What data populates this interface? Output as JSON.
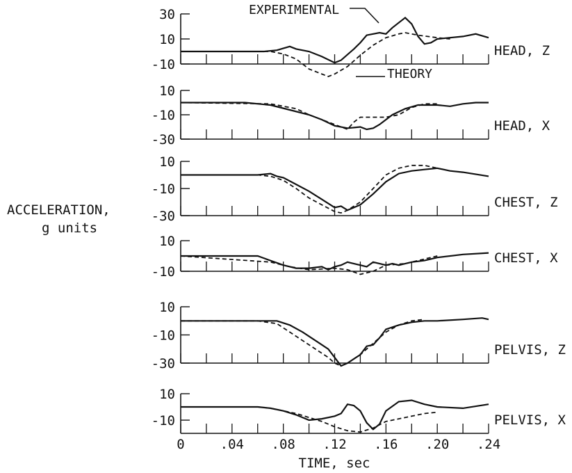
{
  "chart_data": {
    "type": "line",
    "ylabel": [
      "ACCELERATION,",
      "g units"
    ],
    "xlabel": "TIME, sec",
    "xlim": [
      0,
      0.24
    ],
    "xtick_labels": [
      "0",
      ".04",
      ".08",
      ".12",
      ".16",
      ".20",
      ".24"
    ],
    "xticks": [
      0,
      0.04,
      0.08,
      0.12,
      0.16,
      0.2,
      0.24
    ],
    "annotations": {
      "experimental": "EXPERIMENTAL",
      "theory": "THEORY"
    },
    "series_styles": {
      "experimental": "solid",
      "theory": "dashed"
    },
    "panels": [
      {
        "label": "HEAD, Z",
        "ylim": [
          -10,
          30
        ],
        "ytick_labels": [
          "30",
          "10",
          "-10"
        ],
        "yticks": [
          30,
          10,
          -10
        ],
        "experimental": [
          [
            0,
            0
          ],
          [
            0.04,
            0
          ],
          [
            0.065,
            0
          ],
          [
            0.075,
            1
          ],
          [
            0.085,
            4
          ],
          [
            0.09,
            2
          ],
          [
            0.1,
            0
          ],
          [
            0.11,
            -4
          ],
          [
            0.12,
            -9
          ],
          [
            0.125,
            -7
          ],
          [
            0.135,
            2
          ],
          [
            0.14,
            7
          ],
          [
            0.145,
            13
          ],
          [
            0.15,
            14
          ],
          [
            0.155,
            15
          ],
          [
            0.16,
            14
          ],
          [
            0.165,
            19
          ],
          [
            0.175,
            27
          ],
          [
            0.18,
            22
          ],
          [
            0.185,
            12
          ],
          [
            0.19,
            6
          ],
          [
            0.195,
            7
          ],
          [
            0.2,
            10
          ],
          [
            0.21,
            11
          ],
          [
            0.22,
            12
          ],
          [
            0.23,
            14
          ],
          [
            0.24,
            11
          ]
        ],
        "theory": [
          [
            0,
            0
          ],
          [
            0.07,
            0
          ],
          [
            0.08,
            -2
          ],
          [
            0.09,
            -6
          ],
          [
            0.1,
            -14
          ],
          [
            0.11,
            -18
          ],
          [
            0.115,
            -20
          ],
          [
            0.12,
            -18
          ],
          [
            0.13,
            -12
          ],
          [
            0.14,
            -3
          ],
          [
            0.15,
            5
          ],
          [
            0.16,
            11
          ],
          [
            0.17,
            14
          ],
          [
            0.175,
            15
          ],
          [
            0.185,
            13
          ],
          [
            0.2,
            11
          ],
          [
            0.21,
            10
          ]
        ]
      },
      {
        "label": "HEAD, X",
        "ylim": [
          -30,
          10
        ],
        "ytick_labels": [
          "10",
          "-10",
          "-30"
        ],
        "yticks": [
          10,
          -10,
          -30
        ],
        "experimental": [
          [
            0,
            0
          ],
          [
            0.05,
            0
          ],
          [
            0.07,
            -2
          ],
          [
            0.085,
            -6
          ],
          [
            0.1,
            -10
          ],
          [
            0.11,
            -14
          ],
          [
            0.12,
            -19
          ],
          [
            0.13,
            -21
          ],
          [
            0.14,
            -20
          ],
          [
            0.145,
            -22
          ],
          [
            0.15,
            -21
          ],
          [
            0.155,
            -18
          ],
          [
            0.165,
            -10
          ],
          [
            0.175,
            -5
          ],
          [
            0.185,
            -2
          ],
          [
            0.2,
            -2
          ],
          [
            0.21,
            -3
          ],
          [
            0.22,
            -1
          ],
          [
            0.23,
            0
          ],
          [
            0.24,
            0
          ]
        ],
        "theory": [
          [
            0,
            0
          ],
          [
            0.07,
            -1
          ],
          [
            0.09,
            -5
          ],
          [
            0.1,
            -10
          ],
          [
            0.12,
            -18
          ],
          [
            0.13,
            -22
          ],
          [
            0.135,
            -16
          ],
          [
            0.14,
            -12
          ],
          [
            0.16,
            -12
          ],
          [
            0.17,
            -10
          ],
          [
            0.18,
            -4
          ],
          [
            0.19,
            -1
          ],
          [
            0.2,
            -1
          ]
        ]
      },
      {
        "label": "CHEST, Z",
        "ylim": [
          -30,
          10
        ],
        "ytick_labels": [
          "10",
          "-10",
          "-30"
        ],
        "yticks": [
          10,
          -10,
          -30
        ],
        "experimental": [
          [
            0,
            0
          ],
          [
            0.06,
            0
          ],
          [
            0.07,
            1
          ],
          [
            0.075,
            -1
          ],
          [
            0.08,
            -2
          ],
          [
            0.09,
            -7
          ],
          [
            0.1,
            -12
          ],
          [
            0.11,
            -18
          ],
          [
            0.12,
            -24
          ],
          [
            0.125,
            -23
          ],
          [
            0.13,
            -26
          ],
          [
            0.14,
            -22
          ],
          [
            0.15,
            -14
          ],
          [
            0.16,
            -5
          ],
          [
            0.17,
            1
          ],
          [
            0.18,
            3
          ],
          [
            0.19,
            4
          ],
          [
            0.2,
            5
          ],
          [
            0.21,
            3
          ],
          [
            0.22,
            2
          ],
          [
            0.24,
            -1
          ]
        ],
        "theory": [
          [
            0,
            0
          ],
          [
            0.06,
            0
          ],
          [
            0.07,
            -1
          ],
          [
            0.08,
            -4
          ],
          [
            0.09,
            -10
          ],
          [
            0.1,
            -17
          ],
          [
            0.11,
            -22
          ],
          [
            0.12,
            -27
          ],
          [
            0.125,
            -28
          ],
          [
            0.13,
            -26
          ],
          [
            0.14,
            -20
          ],
          [
            0.15,
            -10
          ],
          [
            0.16,
            0
          ],
          [
            0.17,
            5
          ],
          [
            0.18,
            7
          ],
          [
            0.19,
            7
          ],
          [
            0.2,
            5
          ]
        ]
      },
      {
        "label": "CHEST, X",
        "ylim": [
          -10,
          10
        ],
        "ytick_labels": [
          "10",
          "-10"
        ],
        "yticks": [
          10,
          -10
        ],
        "experimental": [
          [
            0,
            0
          ],
          [
            0.06,
            0
          ],
          [
            0.07,
            -3
          ],
          [
            0.08,
            -6
          ],
          [
            0.09,
            -8
          ],
          [
            0.1,
            -8
          ],
          [
            0.11,
            -7
          ],
          [
            0.115,
            -9
          ],
          [
            0.12,
            -7
          ],
          [
            0.125,
            -6
          ],
          [
            0.13,
            -4
          ],
          [
            0.14,
            -6
          ],
          [
            0.145,
            -7
          ],
          [
            0.15,
            -4
          ],
          [
            0.16,
            -6
          ],
          [
            0.165,
            -5
          ],
          [
            0.17,
            -6
          ],
          [
            0.18,
            -4
          ],
          [
            0.19,
            -3
          ],
          [
            0.2,
            -1
          ],
          [
            0.22,
            1
          ],
          [
            0.24,
            2
          ]
        ],
        "theory": [
          [
            0,
            0
          ],
          [
            0.07,
            -4
          ],
          [
            0.085,
            -7
          ],
          [
            0.1,
            -9
          ],
          [
            0.12,
            -8
          ],
          [
            0.13,
            -9
          ],
          [
            0.14,
            -12
          ],
          [
            0.15,
            -10
          ],
          [
            0.16,
            -6
          ],
          [
            0.175,
            -5
          ],
          [
            0.19,
            -2
          ],
          [
            0.2,
            0
          ]
        ]
      },
      {
        "label": "PELVIS, Z",
        "ylim": [
          -30,
          10
        ],
        "ytick_labels": [
          "10",
          "-10",
          "-30"
        ],
        "yticks": [
          10,
          -10,
          -30
        ],
        "experimental": [
          [
            0,
            0
          ],
          [
            0.06,
            0
          ],
          [
            0.075,
            0
          ],
          [
            0.085,
            -3
          ],
          [
            0.095,
            -8
          ],
          [
            0.105,
            -14
          ],
          [
            0.115,
            -20
          ],
          [
            0.12,
            -26
          ],
          [
            0.125,
            -32
          ],
          [
            0.13,
            -30
          ],
          [
            0.14,
            -24
          ],
          [
            0.145,
            -18
          ],
          [
            0.15,
            -17
          ],
          [
            0.155,
            -12
          ],
          [
            0.16,
            -6
          ],
          [
            0.17,
            -3
          ],
          [
            0.18,
            -1
          ],
          [
            0.19,
            0
          ],
          [
            0.2,
            0
          ],
          [
            0.22,
            1
          ],
          [
            0.235,
            2
          ],
          [
            0.24,
            1
          ]
        ],
        "theory": [
          [
            0,
            0
          ],
          [
            0.06,
            0
          ],
          [
            0.075,
            -2
          ],
          [
            0.085,
            -8
          ],
          [
            0.095,
            -14
          ],
          [
            0.105,
            -20
          ],
          [
            0.115,
            -26
          ],
          [
            0.12,
            -30
          ],
          [
            0.125,
            -32
          ],
          [
            0.13,
            -30
          ],
          [
            0.14,
            -24
          ],
          [
            0.15,
            -16
          ],
          [
            0.16,
            -8
          ],
          [
            0.17,
            -3
          ],
          [
            0.18,
            0
          ],
          [
            0.19,
            1
          ]
        ]
      },
      {
        "label": "PELVIS, X",
        "ylim": [
          -20,
          10
        ],
        "ytick_labels": [
          "10",
          "-10"
        ],
        "yticks": [
          10,
          -10
        ],
        "experimental": [
          [
            0,
            0
          ],
          [
            0.06,
            0
          ],
          [
            0.07,
            -1
          ],
          [
            0.08,
            -3
          ],
          [
            0.09,
            -6
          ],
          [
            0.1,
            -10
          ],
          [
            0.11,
            -9
          ],
          [
            0.12,
            -7
          ],
          [
            0.125,
            -5
          ],
          [
            0.13,
            2
          ],
          [
            0.135,
            1
          ],
          [
            0.14,
            -3
          ],
          [
            0.145,
            -12
          ],
          [
            0.15,
            -17
          ],
          [
            0.155,
            -13
          ],
          [
            0.16,
            -3
          ],
          [
            0.17,
            4
          ],
          [
            0.18,
            5
          ],
          [
            0.19,
            2
          ],
          [
            0.2,
            0
          ],
          [
            0.22,
            -1
          ],
          [
            0.24,
            2
          ]
        ],
        "theory": [
          [
            0,
            0
          ],
          [
            0.06,
            0
          ],
          [
            0.07,
            -1
          ],
          [
            0.08,
            -3
          ],
          [
            0.09,
            -5
          ],
          [
            0.1,
            -8
          ],
          [
            0.11,
            -11
          ],
          [
            0.12,
            -15
          ],
          [
            0.13,
            -18
          ],
          [
            0.14,
            -19
          ],
          [
            0.15,
            -16
          ],
          [
            0.16,
            -11
          ],
          [
            0.17,
            -9
          ],
          [
            0.18,
            -7
          ],
          [
            0.19,
            -5
          ],
          [
            0.2,
            -4
          ]
        ]
      }
    ]
  }
}
